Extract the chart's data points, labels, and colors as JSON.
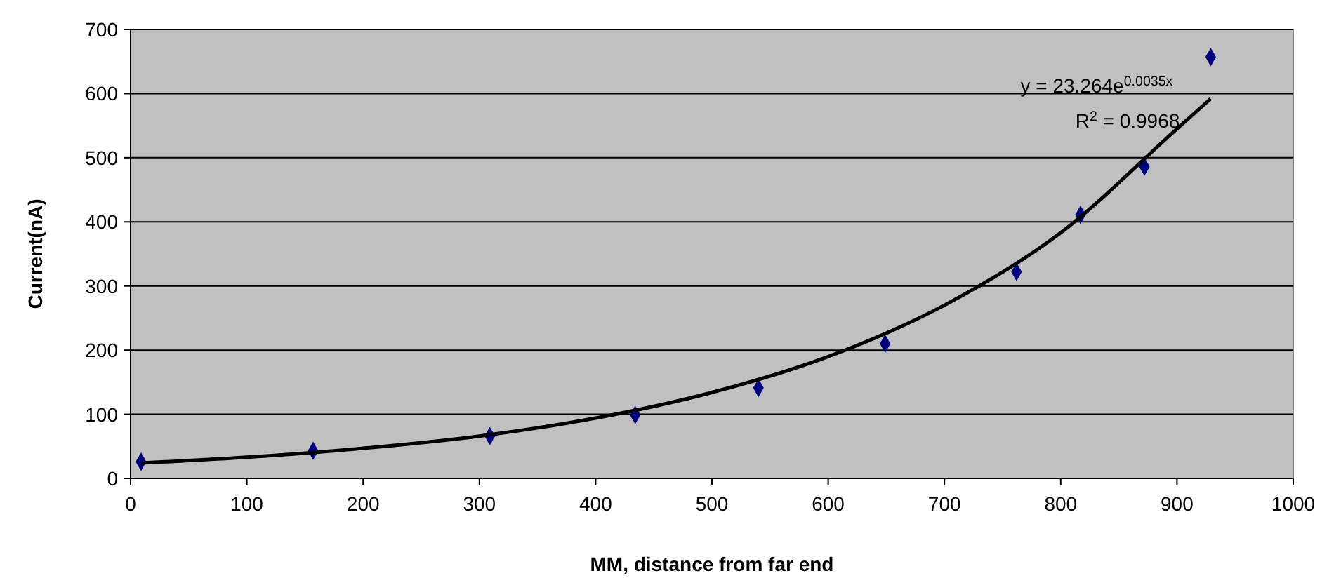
{
  "chart_data": {
    "type": "scatter",
    "xlabel": "MM, distance from far end",
    "ylabel": "Current(nA)",
    "xlim": [
      0,
      1000
    ],
    "xticks": [
      0,
      100,
      200,
      300,
      400,
      500,
      600,
      700,
      800,
      900,
      1000
    ],
    "ylim": [
      0,
      700
    ],
    "yticks": [
      0,
      100,
      200,
      300,
      400,
      500,
      600,
      700
    ],
    "grid": "y",
    "marker": "diamond",
    "series": [
      {
        "color": "#000080",
        "x": [
          9,
          157,
          309,
          434,
          540,
          649,
          762,
          817,
          872,
          929
        ],
        "values": [
          26,
          43,
          66,
          99,
          141,
          210,
          322,
          411,
          486,
          657
        ]
      },
      {
        "type": "line",
        "color": "#000000",
        "marker": "none",
        "line_style": "solid",
        "x": [
          9,
          100,
          200,
          300,
          400,
          500,
          600,
          700,
          800,
          900,
          929
        ],
        "values": [
          24,
          33,
          47,
          66,
          94,
          134,
          190,
          270,
          383,
          545,
          592
        ]
      }
    ],
    "annotations": [
      "y = 23.264e$^{0.0035x}$",
      "R$^{2}$ = 0.9968"
    ]
  }
}
